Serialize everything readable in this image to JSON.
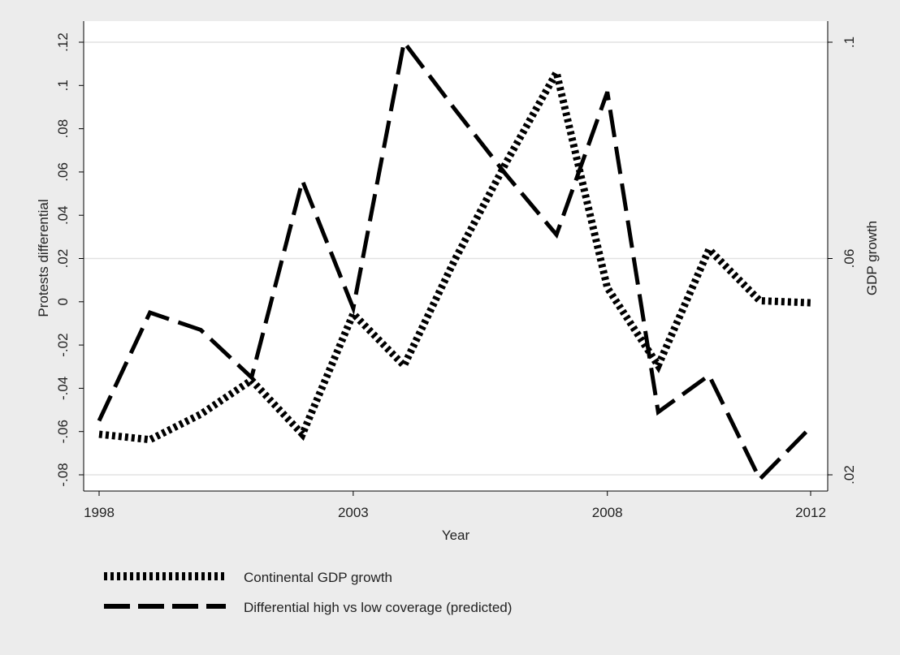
{
  "chart_data": {
    "type": "line",
    "xlabel": "Year",
    "ylabel": "Protests differential",
    "y2label": "GDP growth",
    "x_ticks": [
      "1998",
      "2003",
      "2008",
      "2012"
    ],
    "x_tick_values": [
      1998,
      2003,
      2008,
      2012
    ],
    "xlim": [
      1998,
      2012
    ],
    "y_ticks": [
      "-.08",
      "-.06",
      "-.04",
      "-.02",
      "0",
      ".02",
      ".04",
      ".06",
      ".08",
      ".1",
      ".12"
    ],
    "y_tick_values": [
      -0.08,
      -0.06,
      -0.04,
      -0.02,
      0,
      0.02,
      0.04,
      0.06,
      0.08,
      0.1,
      0.12
    ],
    "ylim": [
      -0.08,
      0.12
    ],
    "y2_ticks": [
      ".02",
      ".06",
      ".1"
    ],
    "y2_tick_values": [
      0.02,
      0.06,
      0.1
    ],
    "y2lim": [
      0.02,
      0.1
    ],
    "grid": "horizontal",
    "legend_position": "bottom",
    "background": "#ececec",
    "plot_background": "#ffffff",
    "series": [
      {
        "name": "Continental GDP growth",
        "axis": "right",
        "style": "dotted",
        "color": "#000000",
        "x": [
          1998,
          1999,
          2000,
          2001,
          2002,
          2003,
          2004,
          2005,
          2006,
          2007,
          2008,
          2009,
          2010,
          2011,
          2012
        ],
        "values": [
          0.0275,
          0.0265,
          0.0312,
          0.0375,
          0.0275,
          0.0498,
          0.0402,
          0.0598,
          0.0776,
          0.0944,
          0.0546,
          0.0402,
          0.0617,
          0.0522,
          0.0518
        ]
      },
      {
        "name": "Differential high vs low coverage (predicted)",
        "axis": "left",
        "style": "dashed",
        "color": "#000000",
        "x": [
          1998,
          1999,
          2000,
          2001,
          2002,
          2003,
          2004,
          2005,
          2006,
          2007,
          2008,
          2009,
          2010,
          2011,
          2012
        ],
        "values": [
          -0.055,
          -0.005,
          -0.013,
          -0.035,
          0.056,
          -0.003,
          0.12,
          0.089,
          0.059,
          0.031,
          0.097,
          -0.051,
          -0.034,
          -0.082,
          -0.058
        ]
      }
    ]
  }
}
